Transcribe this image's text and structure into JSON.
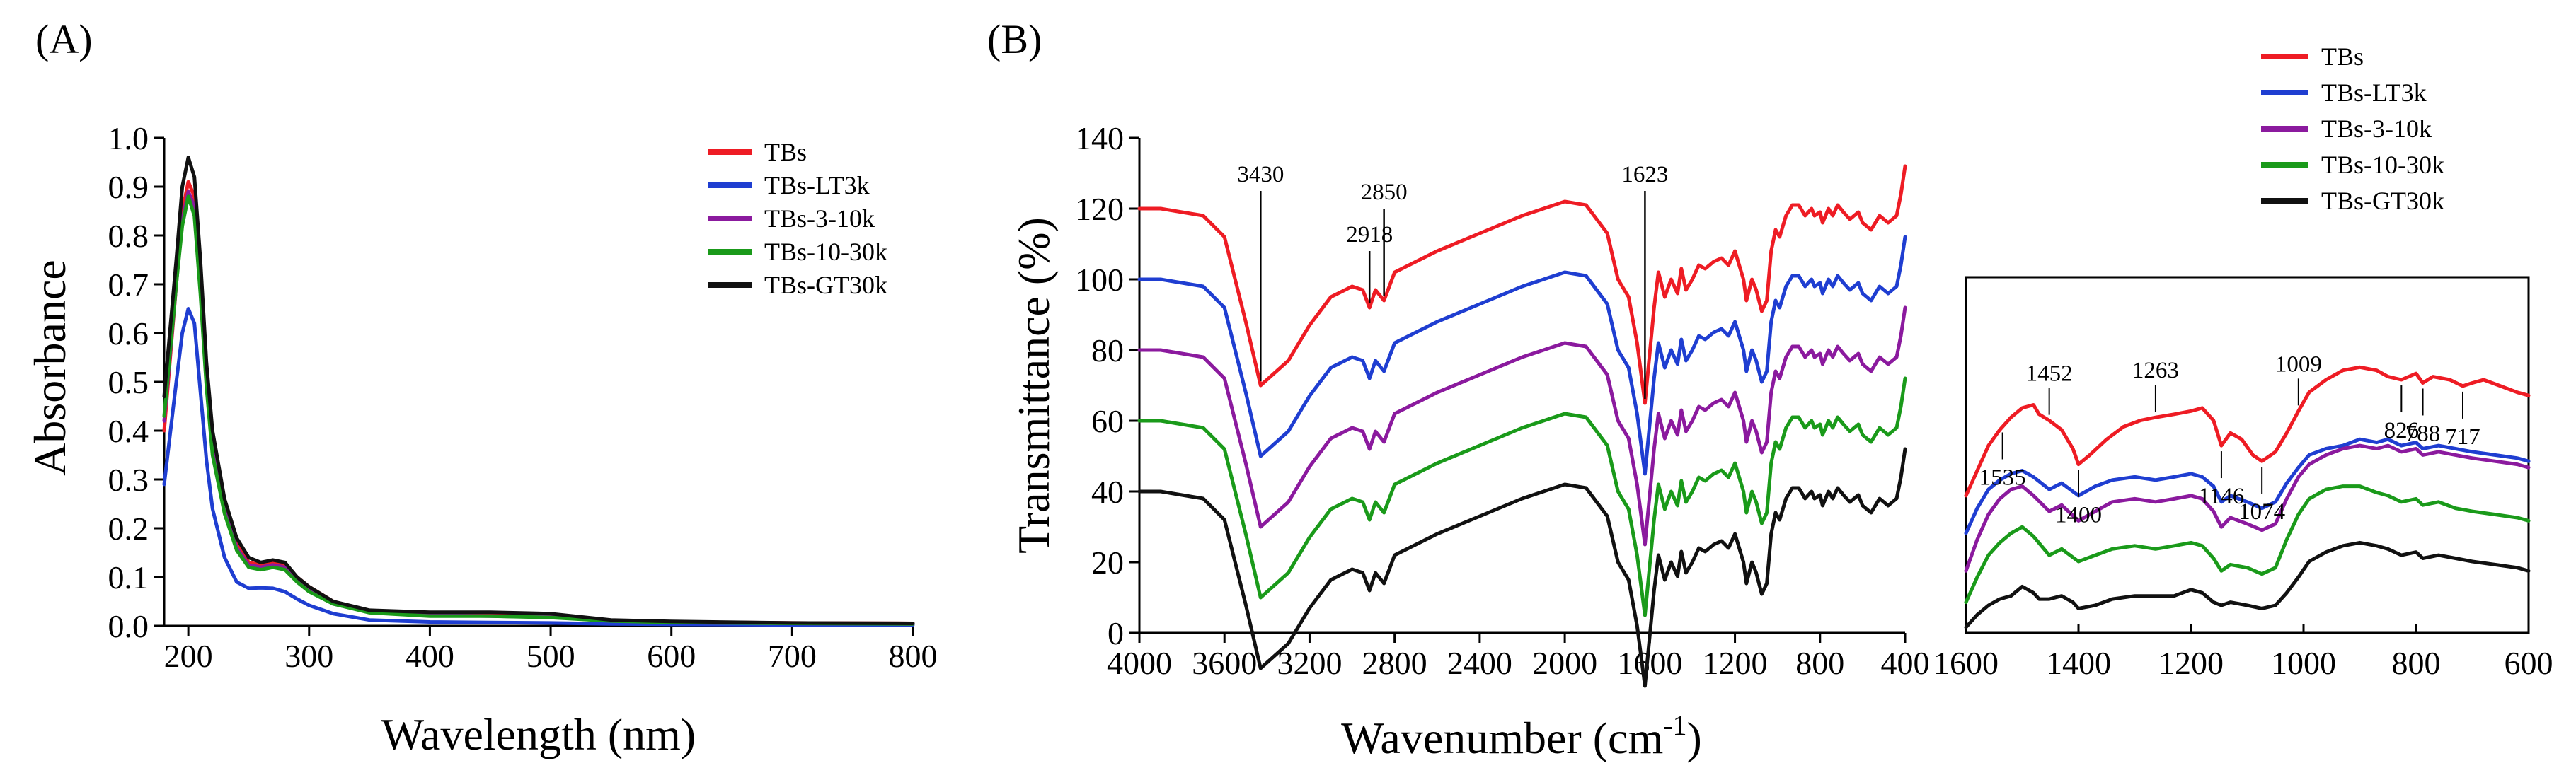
{
  "chart_data": [
    {
      "panel": "(A)",
      "type": "line",
      "title": "",
      "xlabel": "Wavelength (nm)",
      "ylabel": "Absorbance",
      "xlim": [
        180,
        800
      ],
      "ylim": [
        0,
        1.0
      ],
      "xticks": [
        200,
        300,
        400,
        500,
        600,
        700,
        800
      ],
      "yticks": [
        "0.0",
        "0.1",
        "0.2",
        "0.3",
        "0.4",
        "0.5",
        "0.6",
        "0.7",
        "0.8",
        "0.9",
        "1.0"
      ],
      "legend": "top-right",
      "series": [
        {
          "name": "TBs",
          "color": "#ee1c24",
          "x": [
            180,
            190,
            195,
            200,
            205,
            210,
            215,
            220,
            230,
            240,
            250,
            260,
            270,
            280,
            290,
            300,
            320,
            350,
            400,
            450,
            500,
            550,
            600,
            700,
            800
          ],
          "y": [
            0.4,
            0.7,
            0.85,
            0.91,
            0.88,
            0.72,
            0.52,
            0.38,
            0.25,
            0.17,
            0.13,
            0.125,
            0.13,
            0.125,
            0.1,
            0.08,
            0.05,
            0.03,
            0.025,
            0.025,
            0.02,
            0.01,
            0.008,
            0.006,
            0.005
          ]
        },
        {
          "name": "TBs-LT3k",
          "color": "#1f3ed1",
          "x": [
            180,
            190,
            195,
            200,
            205,
            210,
            215,
            220,
            230,
            240,
            250,
            260,
            270,
            280,
            290,
            300,
            320,
            350,
            400,
            450,
            500,
            550,
            600,
            700,
            800
          ],
          "y": [
            0.29,
            0.5,
            0.6,
            0.65,
            0.62,
            0.48,
            0.34,
            0.24,
            0.14,
            0.09,
            0.077,
            0.078,
            0.077,
            0.07,
            0.055,
            0.042,
            0.025,
            0.012,
            0.008,
            0.007,
            0.006,
            0.004,
            0.003,
            0.002,
            0.002
          ]
        },
        {
          "name": "TBs-3-10k",
          "color": "#8b1a9e",
          "x": [
            180,
            190,
            195,
            200,
            205,
            210,
            215,
            220,
            230,
            240,
            250,
            260,
            270,
            280,
            290,
            300,
            320,
            350,
            400,
            450,
            500,
            550,
            600,
            700,
            800
          ],
          "y": [
            0.42,
            0.7,
            0.83,
            0.89,
            0.86,
            0.7,
            0.5,
            0.36,
            0.24,
            0.16,
            0.125,
            0.12,
            0.125,
            0.12,
            0.095,
            0.075,
            0.045,
            0.028,
            0.022,
            0.02,
            0.018,
            0.01,
            0.007,
            0.005,
            0.004
          ]
        },
        {
          "name": "TBs-10-30k",
          "color": "#1a9a1a",
          "x": [
            180,
            190,
            195,
            200,
            205,
            210,
            215,
            220,
            230,
            240,
            250,
            260,
            270,
            280,
            290,
            300,
            320,
            350,
            400,
            450,
            500,
            550,
            600,
            700,
            800
          ],
          "y": [
            0.43,
            0.7,
            0.82,
            0.88,
            0.84,
            0.68,
            0.49,
            0.35,
            0.23,
            0.155,
            0.12,
            0.115,
            0.12,
            0.115,
            0.09,
            0.07,
            0.045,
            0.027,
            0.02,
            0.02,
            0.017,
            0.01,
            0.007,
            0.005,
            0.004
          ]
        },
        {
          "name": "TBs-GT30k",
          "color": "#111111",
          "x": [
            180,
            190,
            195,
            200,
            205,
            210,
            215,
            220,
            230,
            240,
            250,
            260,
            270,
            280,
            290,
            300,
            320,
            350,
            400,
            450,
            500,
            550,
            600,
            700,
            800
          ],
          "y": [
            0.47,
            0.75,
            0.9,
            0.96,
            0.92,
            0.75,
            0.54,
            0.4,
            0.26,
            0.18,
            0.14,
            0.13,
            0.135,
            0.13,
            0.1,
            0.08,
            0.05,
            0.032,
            0.028,
            0.028,
            0.025,
            0.012,
            0.009,
            0.006,
            0.005
          ]
        }
      ]
    },
    {
      "panel": "(B)",
      "type": "line",
      "title": "",
      "xlabel": "Wavenumber (cm",
      "xlabel_sup": "-1",
      "xlabel_close": ")",
      "ylabel": "Transmittance (%)",
      "xlim": [
        4000,
        400
      ],
      "ylim": [
        0,
        140
      ],
      "xticks": [
        4000,
        3600,
        3200,
        2800,
        2400,
        2000,
        1600,
        1200,
        800,
        400
      ],
      "yticks": [
        0,
        20,
        40,
        60,
        80,
        100,
        120,
        140
      ],
      "annotations": [
        {
          "label": "3430",
          "x": 3430
        },
        {
          "label": "2918",
          "x": 2918
        },
        {
          "label": "2850",
          "x": 2850
        },
        {
          "label": "1623",
          "x": 1623
        }
      ],
      "series": [
        {
          "name": "TBs",
          "color": "#ee1c24",
          "offset": 0
        },
        {
          "name": "TBs-LT3k",
          "color": "#1f3ed1",
          "offset": -20
        },
        {
          "name": "TBs-3-10k",
          "color": "#8b1a9e",
          "offset": -40
        },
        {
          "name": "TBs-10-30k",
          "color": "#1a9a1a",
          "offset": -60
        },
        {
          "name": "TBs-GT30k",
          "color": "#111111",
          "offset": -80
        }
      ],
      "base_x": [
        4000,
        3900,
        3800,
        3700,
        3600,
        3500,
        3430,
        3300,
        3200,
        3100,
        3000,
        2950,
        2918,
        2890,
        2850,
        2800,
        2600,
        2400,
        2200,
        2000,
        1900,
        1800,
        1750,
        1700,
        1660,
        1623,
        1580,
        1560,
        1530,
        1500,
        1470,
        1452,
        1430,
        1400,
        1370,
        1340,
        1300,
        1263,
        1230,
        1200,
        1160,
        1146,
        1120,
        1100,
        1074,
        1050,
        1030,
        1009,
        990,
        960,
        930,
        900,
        870,
        840,
        826,
        800,
        788,
        760,
        740,
        717,
        690,
        660,
        620,
        600,
        560,
        520,
        480,
        440,
        420,
        400
      ],
      "base_y": [
        120,
        120,
        119,
        118,
        112,
        88,
        70,
        77,
        87,
        95,
        98,
        97,
        92,
        97,
        94,
        102,
        108,
        113,
        118,
        122,
        121,
        113,
        100,
        95,
        82,
        65,
        92,
        102,
        95,
        100,
        96,
        103,
        97,
        100,
        104,
        103,
        105,
        106,
        104,
        108,
        100,
        94,
        100,
        97,
        91,
        94,
        108,
        114,
        112,
        118,
        121,
        121,
        118,
        120,
        118,
        119,
        116,
        120,
        118,
        121,
        119,
        117,
        119,
        116,
        114,
        118,
        116,
        118,
        124,
        132
      ]
    },
    {
      "panel": "(B) inset",
      "type": "line",
      "title": "",
      "xlabel": "",
      "ylabel": "",
      "xlim": [
        1600,
        600
      ],
      "xticks": [
        1600,
        1400,
        1200,
        1000,
        800,
        600
      ],
      "annotations": [
        {
          "label": "1535",
          "x": 1535
        },
        {
          "label": "1452",
          "x": 1452
        },
        {
          "label": "1400",
          "x": 1400
        },
        {
          "label": "1263",
          "x": 1263
        },
        {
          "label": "1146",
          "x": 1146
        },
        {
          "label": "1074",
          "x": 1074
        },
        {
          "label": "1009",
          "x": 1009
        },
        {
          "label": "826",
          "x": 826
        },
        {
          "label": "788",
          "x": 788
        },
        {
          "label": "717",
          "x": 717
        }
      ],
      "series": [
        {
          "name": "TBs",
          "color": "#ee1c24",
          "x": [
            1600,
            1580,
            1560,
            1540,
            1520,
            1500,
            1480,
            1470,
            1452,
            1430,
            1410,
            1400,
            1380,
            1350,
            1320,
            1290,
            1263,
            1230,
            1200,
            1180,
            1160,
            1146,
            1130,
            1110,
            1090,
            1074,
            1050,
            1030,
            1009,
            990,
            960,
            930,
            900,
            870,
            850,
            826,
            800,
            788,
            770,
            740,
            717,
            700,
            680,
            650,
            620,
            600
          ],
          "y": [
            0.42,
            0.5,
            0.58,
            0.63,
            0.67,
            0.7,
            0.71,
            0.68,
            0.66,
            0.63,
            0.57,
            0.52,
            0.55,
            0.6,
            0.64,
            0.66,
            0.67,
            0.68,
            0.69,
            0.7,
            0.66,
            0.58,
            0.62,
            0.6,
            0.55,
            0.53,
            0.56,
            0.62,
            0.69,
            0.75,
            0.79,
            0.82,
            0.83,
            0.82,
            0.8,
            0.79,
            0.81,
            0.78,
            0.8,
            0.79,
            0.77,
            0.78,
            0.79,
            0.77,
            0.75,
            0.74
          ]
        },
        {
          "name": "TBs-LT3k",
          "color": "#1f3ed1",
          "x": [
            1600,
            1580,
            1560,
            1540,
            1520,
            1500,
            1480,
            1452,
            1430,
            1400,
            1370,
            1340,
            1300,
            1263,
            1230,
            1200,
            1180,
            1160,
            1146,
            1130,
            1100,
            1074,
            1050,
            1030,
            1009,
            990,
            960,
            930,
            900,
            870,
            850,
            826,
            800,
            788,
            760,
            730,
            700,
            660,
            620,
            600
          ],
          "y": [
            0.3,
            0.38,
            0.44,
            0.47,
            0.49,
            0.5,
            0.48,
            0.44,
            0.46,
            0.42,
            0.45,
            0.47,
            0.48,
            0.47,
            0.48,
            0.49,
            0.48,
            0.45,
            0.4,
            0.42,
            0.4,
            0.38,
            0.4,
            0.46,
            0.51,
            0.55,
            0.57,
            0.58,
            0.6,
            0.59,
            0.6,
            0.58,
            0.59,
            0.57,
            0.58,
            0.57,
            0.56,
            0.55,
            0.54,
            0.53
          ]
        },
        {
          "name": "TBs-3-10k",
          "color": "#8b1a9e",
          "x": [
            1600,
            1580,
            1560,
            1540,
            1520,
            1500,
            1480,
            1452,
            1430,
            1400,
            1370,
            1340,
            1300,
            1263,
            1230,
            1200,
            1180,
            1160,
            1146,
            1130,
            1100,
            1074,
            1050,
            1030,
            1009,
            990,
            960,
            930,
            900,
            870,
            850,
            826,
            800,
            788,
            760,
            730,
            700,
            660,
            620,
            600
          ],
          "y": [
            0.18,
            0.28,
            0.36,
            0.41,
            0.44,
            0.45,
            0.42,
            0.37,
            0.39,
            0.34,
            0.37,
            0.4,
            0.41,
            0.4,
            0.41,
            0.42,
            0.41,
            0.37,
            0.32,
            0.35,
            0.33,
            0.31,
            0.33,
            0.41,
            0.48,
            0.52,
            0.55,
            0.57,
            0.58,
            0.57,
            0.58,
            0.56,
            0.57,
            0.55,
            0.56,
            0.55,
            0.54,
            0.53,
            0.52,
            0.51
          ]
        },
        {
          "name": "TBs-10-30k",
          "color": "#1a9a1a",
          "x": [
            1600,
            1580,
            1560,
            1540,
            1520,
            1500,
            1480,
            1452,
            1430,
            1400,
            1370,
            1340,
            1300,
            1263,
            1230,
            1200,
            1180,
            1160,
            1146,
            1130,
            1100,
            1074,
            1050,
            1030,
            1009,
            990,
            960,
            930,
            900,
            870,
            850,
            826,
            800,
            788,
            760,
            730,
            700,
            660,
            620,
            600
          ],
          "y": [
            0.08,
            0.16,
            0.23,
            0.27,
            0.3,
            0.32,
            0.29,
            0.23,
            0.25,
            0.21,
            0.23,
            0.25,
            0.26,
            0.25,
            0.26,
            0.27,
            0.26,
            0.22,
            0.18,
            0.2,
            0.19,
            0.17,
            0.19,
            0.28,
            0.36,
            0.41,
            0.44,
            0.45,
            0.45,
            0.43,
            0.42,
            0.4,
            0.41,
            0.39,
            0.4,
            0.38,
            0.37,
            0.36,
            0.35,
            0.34
          ]
        },
        {
          "name": "TBs-GT30k",
          "color": "#111111",
          "x": [
            1600,
            1580,
            1560,
            1540,
            1520,
            1500,
            1480,
            1470,
            1452,
            1430,
            1410,
            1400,
            1370,
            1340,
            1300,
            1263,
            1230,
            1200,
            1180,
            1160,
            1146,
            1130,
            1100,
            1074,
            1050,
            1030,
            1009,
            990,
            960,
            930,
            900,
            870,
            850,
            826,
            800,
            788,
            760,
            730,
            700,
            660,
            620,
            600
          ],
          "y": [
            0.0,
            0.04,
            0.07,
            0.09,
            0.1,
            0.13,
            0.11,
            0.09,
            0.09,
            0.1,
            0.08,
            0.06,
            0.07,
            0.09,
            0.1,
            0.1,
            0.1,
            0.12,
            0.11,
            0.08,
            0.07,
            0.08,
            0.07,
            0.06,
            0.07,
            0.11,
            0.16,
            0.21,
            0.24,
            0.26,
            0.27,
            0.26,
            0.25,
            0.23,
            0.24,
            0.22,
            0.23,
            0.22,
            0.21,
            0.2,
            0.19,
            0.18
          ]
        }
      ]
    }
  ],
  "legendA": [
    "TBs",
    "TBs-LT3k",
    "TBs-3-10k",
    "TBs-10-30k",
    "TBs-GT30k"
  ],
  "legendB": [
    "TBs",
    "TBs-LT3k",
    "TBs-3-10k",
    "TBs-10-30k",
    "TBs-GT30k"
  ],
  "colors": [
    "#ee1c24",
    "#1f3ed1",
    "#8b1a9e",
    "#1a9a1a",
    "#111111"
  ]
}
